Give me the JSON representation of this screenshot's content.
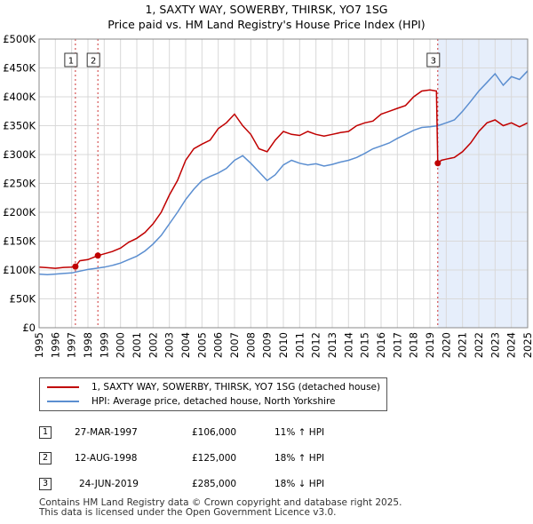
{
  "title_line1": "1, SAXTY WAY, SOWERBY, THIRSK, YO7 1SG",
  "title_line2": "Price paid vs. HM Land Registry's House Price Index (HPI)",
  "colors": {
    "property": "#c00000",
    "hpi": "#5b8ed0",
    "shade": "#e6eefb",
    "grid": "#d9d9d9"
  },
  "legend": {
    "property": "1, SAXTY WAY, SOWERBY, THIRSK, YO7 1SG (detached house)",
    "hpi": "HPI: Average price, detached house, North Yorkshire"
  },
  "transactions": [
    {
      "num": "1",
      "date": "27-MAR-1997",
      "price": "£106,000",
      "hpi_change": "11% ↑ HPI"
    },
    {
      "num": "2",
      "date": "12-AUG-1998",
      "price": "£125,000",
      "hpi_change": "18% ↑ HPI"
    },
    {
      "num": "3",
      "date": "24-JUN-2019",
      "price": "£285,000",
      "hpi_change": "18% ↓ HPI"
    }
  ],
  "footer_line1": "Contains HM Land Registry data © Crown copyright and database right 2025.",
  "footer_line2": "This data is licensed under the Open Government Licence v3.0.",
  "chart_data": {
    "type": "line",
    "xlim": [
      1995,
      2025
    ],
    "ylim": [
      0,
      500000
    ],
    "x_ticks": [
      "1995",
      "1996",
      "1997",
      "1998",
      "1999",
      "2000",
      "2001",
      "2002",
      "2003",
      "2004",
      "2005",
      "2006",
      "2007",
      "2008",
      "2009",
      "2010",
      "2011",
      "2012",
      "2013",
      "2014",
      "2015",
      "2016",
      "2017",
      "2018",
      "2019",
      "2020",
      "2021",
      "2022",
      "2023",
      "2024",
      "2025"
    ],
    "y_ticks": [
      {
        "value": 0,
        "label": "£0"
      },
      {
        "value": 50000,
        "label": "£50K"
      },
      {
        "value": 100000,
        "label": "£100K"
      },
      {
        "value": 150000,
        "label": "£150K"
      },
      {
        "value": 200000,
        "label": "£200K"
      },
      {
        "value": 250000,
        "label": "£250K"
      },
      {
        "value": 300000,
        "label": "£300K"
      },
      {
        "value": 350000,
        "label": "£350K"
      },
      {
        "value": 400000,
        "label": "£400K"
      },
      {
        "value": 450000,
        "label": "£450K"
      },
      {
        "value": 500000,
        "label": "£500K"
      }
    ],
    "grid": true,
    "shaded_from": 2019.48,
    "sales": [
      {
        "label": "1",
        "x": 1997.23,
        "y": 106000
      },
      {
        "label": "2",
        "x": 1998.61,
        "y": 125000
      },
      {
        "label": "3",
        "x": 2019.48,
        "y": 285000
      }
    ],
    "series": [
      {
        "name": "1, SAXTY WAY, SOWERBY, THIRSK, YO7 1SG (detached house)",
        "x": [
          1995,
          1995.5,
          1996,
          1996.5,
          1997,
          1997.23,
          1997.5,
          1998,
          1998.61,
          1999,
          1999.5,
          2000,
          2000.5,
          2001,
          2001.5,
          2002,
          2002.5,
          2003,
          2003.5,
          2004,
          2004.5,
          2005,
          2005.5,
          2006,
          2006.5,
          2007,
          2007.5,
          2008,
          2008.5,
          2009,
          2009.5,
          2010,
          2010.5,
          2011,
          2011.5,
          2012,
          2012.5,
          2013,
          2013.5,
          2014,
          2014.5,
          2015,
          2015.5,
          2016,
          2016.5,
          2017,
          2017.5,
          2018,
          2018.5,
          2019,
          2019.4,
          2019.48,
          2019.7,
          2020,
          2020.5,
          2021,
          2021.5,
          2022,
          2022.5,
          2023,
          2023.5,
          2024,
          2024.5,
          2025
        ],
        "y": [
          105000,
          104000,
          103000,
          104500,
          105000,
          106000,
          116000,
          118000,
          125000,
          128000,
          132000,
          138000,
          148000,
          155000,
          165000,
          180000,
          200000,
          230000,
          255000,
          290000,
          310000,
          318000,
          325000,
          345000,
          355000,
          370000,
          350000,
          335000,
          310000,
          305000,
          325000,
          340000,
          335000,
          333000,
          340000,
          335000,
          332000,
          335000,
          338000,
          340000,
          350000,
          355000,
          358000,
          370000,
          375000,
          380000,
          385000,
          400000,
          410000,
          412000,
          410000,
          285000,
          290000,
          292000,
          295000,
          305000,
          320000,
          340000,
          355000,
          360000,
          350000,
          355000,
          348000,
          355000
        ]
      },
      {
        "name": "HPI: Average price, detached house, North Yorkshire",
        "x": [
          1995,
          1995.5,
          1996,
          1996.5,
          1997,
          1997.5,
          1998,
          1998.5,
          1999,
          1999.5,
          2000,
          2000.5,
          2001,
          2001.5,
          2002,
          2002.5,
          2003,
          2003.5,
          2004,
          2004.5,
          2005,
          2005.5,
          2006,
          2006.5,
          2007,
          2007.5,
          2008,
          2008.5,
          2009,
          2009.5,
          2010,
          2010.5,
          2011,
          2011.5,
          2012,
          2012.5,
          2013,
          2013.5,
          2014,
          2014.5,
          2015,
          2015.5,
          2016,
          2016.5,
          2017,
          2017.5,
          2018,
          2018.5,
          2019,
          2019.5,
          2020,
          2020.5,
          2021,
          2021.5,
          2022,
          2022.5,
          2023,
          2023.5,
          2024,
          2024.5,
          2025
        ],
        "y": [
          93000,
          92000,
          93000,
          94000,
          95000,
          98000,
          101000,
          103000,
          105000,
          108000,
          112000,
          118000,
          124000,
          133000,
          145000,
          160000,
          180000,
          200000,
          222000,
          240000,
          255000,
          262000,
          268000,
          276000,
          290000,
          298000,
          285000,
          270000,
          255000,
          265000,
          282000,
          290000,
          285000,
          282000,
          284000,
          280000,
          283000,
          287000,
          290000,
          295000,
          302000,
          310000,
          315000,
          320000,
          328000,
          335000,
          342000,
          347000,
          348000,
          350000,
          355000,
          360000,
          375000,
          392000,
          410000,
          425000,
          440000,
          420000,
          435000,
          430000,
          445000
        ]
      }
    ]
  }
}
